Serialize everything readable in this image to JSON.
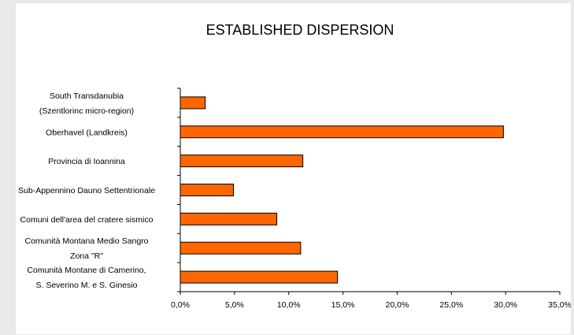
{
  "chart_data": {
    "type": "bar",
    "orientation": "horizontal",
    "title": "ESTABLISHED DISPERSION",
    "categories": [
      [
        "South Transdanubia",
        "(Szentlorinc micro-region)"
      ],
      [
        "Oberhavel (Landkreis)"
      ],
      [
        "Provincia di Ioannina"
      ],
      [
        "Sub-Appennino Dauno Settentrionale"
      ],
      [
        "Comuni dell'area del cratere sismico"
      ],
      [
        "Comunità Montana Medio Sangro",
        "Zona \"R\""
      ],
      [
        "Comunità Montane di Camerino,",
        "S. Severino M. e S. Ginesio"
      ]
    ],
    "values": [
      2.3,
      29.8,
      11.3,
      4.9,
      8.9,
      11.1,
      14.5
    ],
    "xlim": [
      0,
      35
    ],
    "xticks": [
      "0,0%",
      "5,0%",
      "10,0%",
      "15,0%",
      "20,0%",
      "25,0%",
      "30,0%",
      "35,0%"
    ],
    "xlabel": "",
    "ylabel": "",
    "bar_color": "#ff6600",
    "grid": false,
    "legend": "none"
  }
}
